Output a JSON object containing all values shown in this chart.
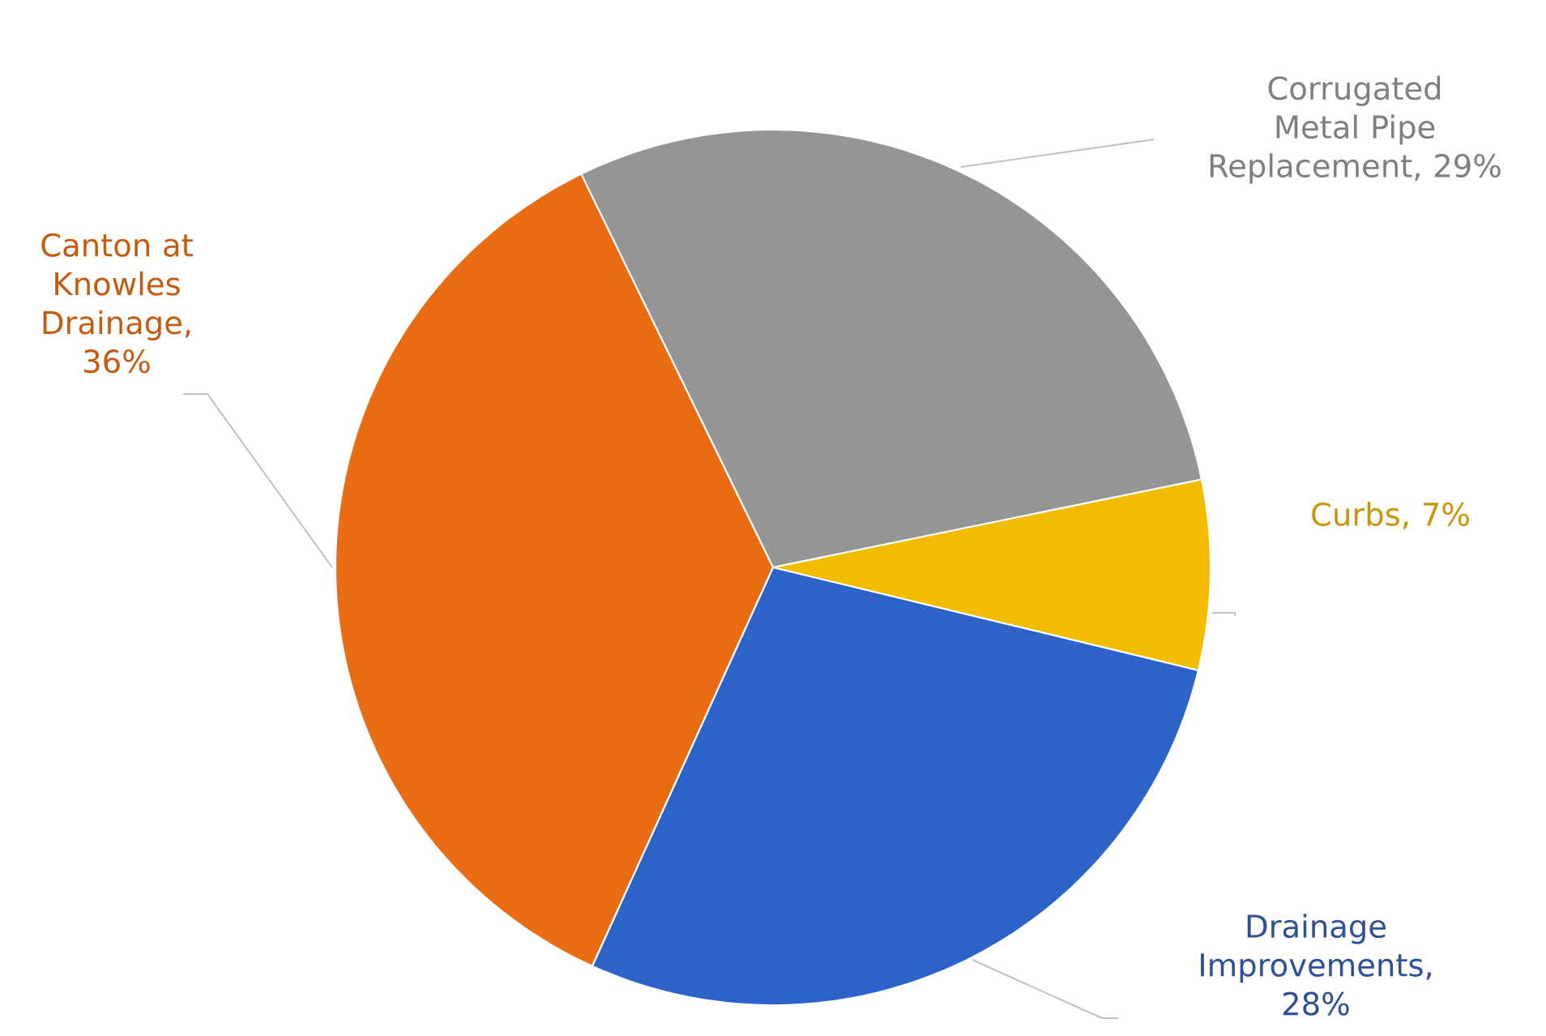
{
  "chart_data": {
    "type": "pie",
    "categories": [
      "Corrugated Metal Pipe Replacement",
      "Curbs",
      "Drainage Improvements",
      "Canton at Knowles Drainage"
    ],
    "values": [
      29,
      7,
      28,
      36
    ],
    "colors": [
      "#959595",
      "#f2bd00",
      "#2b63c9",
      "#e96c12"
    ],
    "value_labels": [
      ", 29%",
      ", 7%",
      ", 28%",
      ", 36%"
    ]
  }
}
